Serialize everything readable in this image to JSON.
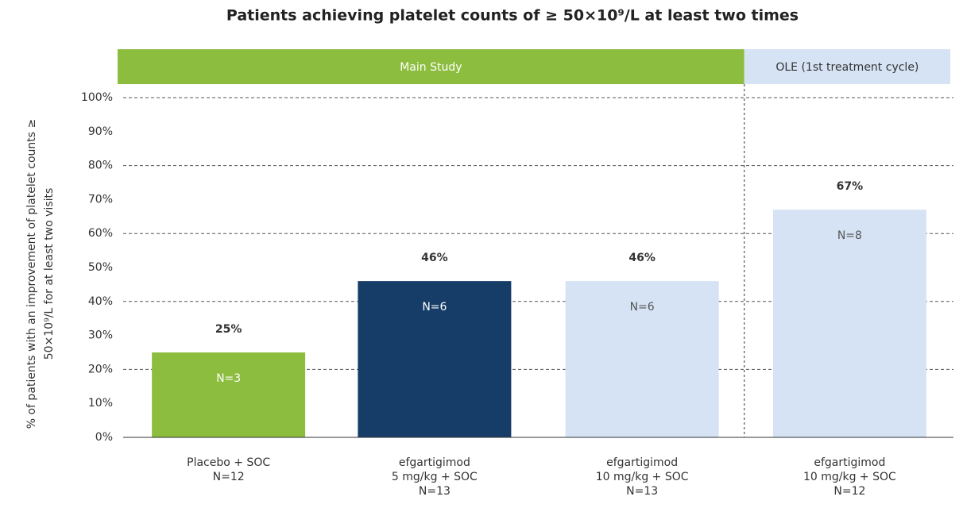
{
  "chart_data": {
    "type": "bar",
    "title": "Patients achieving platelet counts of ≥ 50×10⁹/L at least two times",
    "ylabel": [
      "% of patients with an improvement of platelet counts ≥",
      "50×10⁹/L for at least two visits"
    ],
    "sections": [
      {
        "label": "Main Study",
        "color": "#8cbd3f"
      },
      {
        "label": "OLE (1st treatment cycle)",
        "color": "#d5e3f4"
      }
    ],
    "categories": [
      [
        "Placebo + SOC",
        "N=12"
      ],
      [
        "efgartigimod",
        "5 mg/kg + SOC",
        "N=13"
      ],
      [
        "efgartigimod",
        "10 mg/kg  + SOC",
        "N=13"
      ],
      [
        "efgartigimod",
        "10 mg/kg + SOC",
        "N=12"
      ]
    ],
    "values": [
      25,
      46,
      46,
      67
    ],
    "value_labels": [
      "25%",
      "46%",
      "46%",
      "67%"
    ],
    "bar_labels": [
      "N=3",
      "N=6",
      "N=6",
      "N=8"
    ],
    "colors": [
      "#8cbd3f",
      "#163d68",
      "#d5e3f4",
      "#d5e3f4"
    ],
    "ylim": [
      0,
      100
    ],
    "yticks": [
      {
        "value": 0,
        "label": "0%"
      },
      {
        "value": 10,
        "label": "10%"
      },
      {
        "value": 20,
        "label": "20%"
      },
      {
        "value": 30,
        "label": "30%"
      },
      {
        "value": 40,
        "label": "40%"
      },
      {
        "value": 50,
        "label": "50%"
      },
      {
        "value": 60,
        "label": "60%"
      },
      {
        "value": 70,
        "label": "70%"
      },
      {
        "value": 80,
        "label": "80%"
      },
      {
        "value": 90,
        "label": "90%"
      },
      {
        "value": 100,
        "label": "100%"
      }
    ],
    "grid": true
  }
}
